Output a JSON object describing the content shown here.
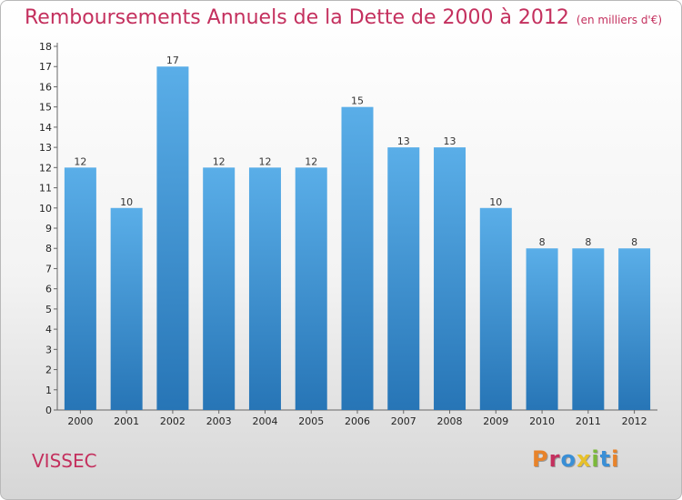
{
  "chart_data": {
    "type": "bar",
    "title": "Remboursements Annuels de la Dette de 2000 à 2012",
    "subtitle": "(en milliers d'€)",
    "categories": [
      "2000",
      "2001",
      "2002",
      "2003",
      "2004",
      "2005",
      "2006",
      "2007",
      "2008",
      "2009",
      "2010",
      "2011",
      "2012"
    ],
    "values": [
      12,
      10,
      17,
      12,
      12,
      12,
      15,
      13,
      13,
      10,
      8,
      8,
      8
    ],
    "ylim": [
      0,
      18
    ],
    "yticks": [
      0,
      1,
      2,
      3,
      4,
      5,
      6,
      7,
      8,
      9,
      10,
      11,
      12,
      13,
      14,
      15,
      16,
      17,
      18
    ],
    "grid": false,
    "bar_color_top": "#5aaee8",
    "bar_color_bottom": "#2775b6"
  },
  "footer": {
    "location": "VISSEC",
    "brand": "Proxiti",
    "brand_colors": [
      "#e8832a",
      "#c4305e",
      "#3a8fd6",
      "#e8c12a",
      "#7bb93a",
      "#3a8fd6",
      "#e8832a"
    ]
  }
}
